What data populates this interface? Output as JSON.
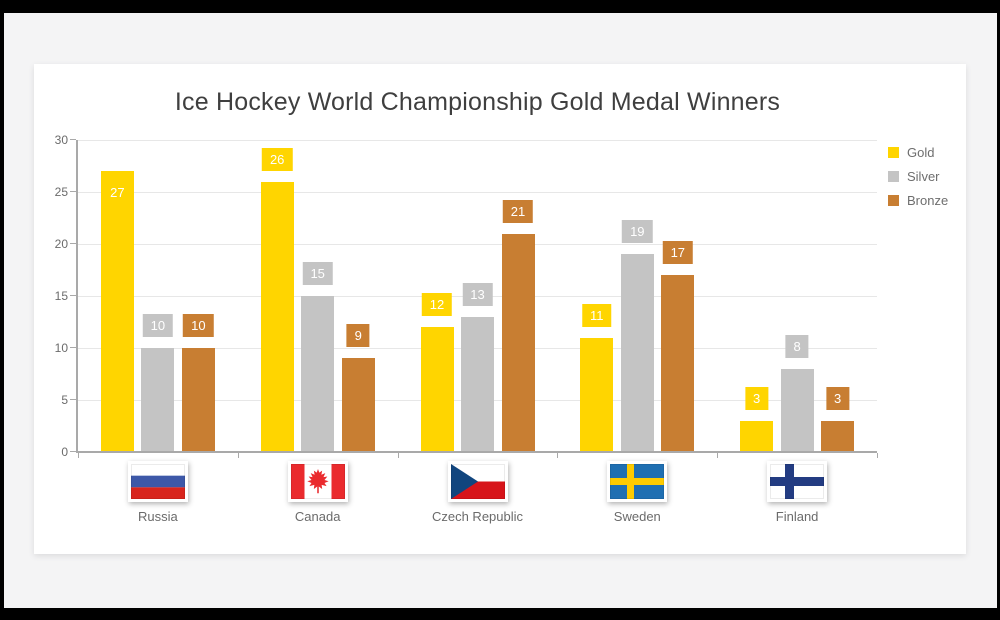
{
  "window": {
    "frame_color": "#000000",
    "page_background": "#f4f4f5",
    "card_background": "#ffffff"
  },
  "chart_data": {
    "type": "bar",
    "title": "Ice Hockey World Championship Gold Medal Winners",
    "categories": [
      "Russia",
      "Canada",
      "Czech Republic",
      "Sweden",
      "Finland"
    ],
    "series": [
      {
        "name": "Gold",
        "color": "#FFD500",
        "values": [
          27,
          26,
          12,
          11,
          3
        ]
      },
      {
        "name": "Silver",
        "color": "#C4C4C4",
        "values": [
          10,
          15,
          13,
          19,
          8
        ]
      },
      {
        "name": "Bronze",
        "color": "#C87E32",
        "values": [
          10,
          9,
          21,
          17,
          3
        ]
      }
    ],
    "xlabel": "",
    "ylabel": "",
    "ylim": [
      0,
      30
    ],
    "yticks": [
      0,
      5,
      10,
      15,
      20,
      25,
      30
    ],
    "grid": "horizontal gridlines on",
    "legend_position": "top-right",
    "data_labels": "value shown in white text inside a series-colored box above each bar; moved inside the bar top when it would overflow the plot"
  },
  "flags": {
    "Russia": {
      "kind": "tricolor-horizontal",
      "colors": [
        "#FFFFFF",
        "#3D58A8",
        "#D8251D"
      ]
    },
    "Canada": {
      "kind": "canada",
      "band": "#EA2B2E",
      "field": "#FFFFFF",
      "leaf": "#EA2B2E"
    },
    "Czech Republic": {
      "kind": "czech",
      "white": "#FFFFFF",
      "red": "#D7141A",
      "blue": "#11457E"
    },
    "Sweden": {
      "kind": "nordic-cross",
      "field": "#1F6FB2",
      "cross": "#FECB00",
      "vx": 17,
      "vw": 7,
      "hy": 14,
      "hh": 7
    },
    "Finland": {
      "kind": "nordic-cross",
      "field": "#FFFFFF",
      "cross": "#233C82",
      "vx": 15,
      "vw": 9,
      "hy": 13,
      "hh": 9
    }
  },
  "style_colors": {
    "axis_line": "#a9a9a9",
    "gridline": "#e7e7e7",
    "tick_label": "#6b6b6b",
    "title": "#3f3f3f",
    "data_label_text": "#ffffff"
  }
}
